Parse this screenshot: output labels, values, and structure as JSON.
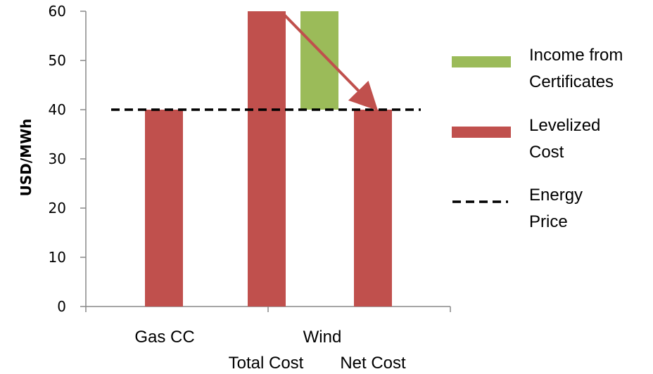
{
  "chart_data": {
    "type": "bar",
    "ylabel": "USD/MWh",
    "ylim": [
      0,
      60
    ],
    "yticks": [
      0,
      10,
      20,
      30,
      40,
      50,
      60
    ],
    "categories": [
      "Gas CC",
      "Wind"
    ],
    "subcategories": [
      "Total Cost",
      "Net Cost"
    ],
    "bars": [
      {
        "category": "Gas CC",
        "sub": "",
        "series": "Levelized Cost",
        "base": 0,
        "value": 40
      },
      {
        "category": "Wind",
        "sub": "Total Cost",
        "series": "Levelized Cost",
        "base": 0,
        "value": 60
      },
      {
        "category": "Wind",
        "sub": "",
        "series": "Income from Certificates",
        "base": 40,
        "value": 60
      },
      {
        "category": "Wind",
        "sub": "Net Cost",
        "series": "Levelized Cost",
        "base": 0,
        "value": 40
      }
    ],
    "reference_line": {
      "name": "Energy Price",
      "value": 40,
      "style": "dashed",
      "color": "#000000"
    },
    "annotation": {
      "type": "arrow",
      "from": {
        "bar": 1,
        "y": 60
      },
      "to": {
        "bar": 3,
        "y": 40
      },
      "color": "#c0504d"
    },
    "series": [
      {
        "name": "Income from Certificates",
        "color": "#9bbb59"
      },
      {
        "name": "Levelized Cost",
        "color": "#c0504d"
      },
      {
        "name": "Energy Price",
        "color": "#000000"
      }
    ],
    "legend": {
      "position": "right",
      "items": [
        {
          "lines": [
            "Income from",
            "Certificates"
          ],
          "kind": "swatch",
          "color": "#9bbb59"
        },
        {
          "lines": [
            "Levelized",
            "Cost"
          ],
          "kind": "swatch",
          "color": "#c0504d"
        },
        {
          "lines": [
            "Energy",
            "Price"
          ],
          "kind": "dash",
          "color": "#000000"
        }
      ]
    },
    "grid": false
  }
}
